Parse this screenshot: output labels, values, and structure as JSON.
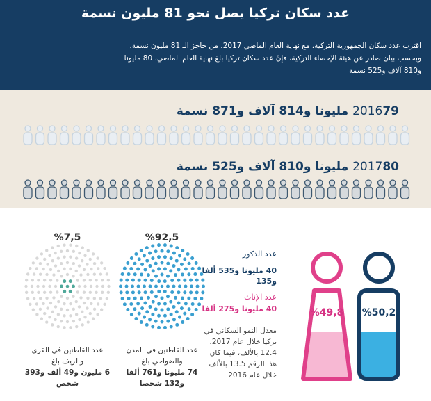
{
  "header": {
    "title": "عدد سكان تركيا يصل نحو 81 مليون نسمة",
    "intro": [
      "اقترب عدد سكان الجمهورية التركية، مع نهاية العام الماضي 2017، من حاجز الـ 81 مليون نسمة.",
      "وبحسب بيان صادر عن هيئة الإحصاء التركية، فإنّ عدد سكان تركيا بلغ نهاية العام الماضي، 80 مليونا",
      "و810 آلاف و525 نسمة"
    ]
  },
  "years": [
    {
      "year": "2016",
      "population": "79 مليونا و814 آلاف و871 نسمة"
    },
    {
      "year": "2017",
      "population": "80 مليونا و810 آلاف و525 نسمة"
    }
  ],
  "residence": [
    {
      "percent": "%7,5",
      "label": "عدد القاطنين في القرى والريف بلغ",
      "count": "6 مليون و49 ألف و393 شخص"
    },
    {
      "percent": "%92,5",
      "label": "عدد القاطنين في المدن والضواحي بلغ",
      "count": "74 مليونا و761 ألفا و132 شخصا"
    }
  ],
  "gender": {
    "males_label": "عدد الذكور",
    "males_count": "40 مليونا و535 ألفا و135",
    "females_label": "عدد الإناث",
    "females_count": "40 مليونا و275 ألفا",
    "female_percent": "%49,8",
    "male_percent": "%50,2",
    "growth_note": "معدل النمو السكاني في تركيا خلال عام 2017، 12.4 بالألف، فيما كان هذا الرقم 13.5 بالألف خلال عام 2016"
  }
}
